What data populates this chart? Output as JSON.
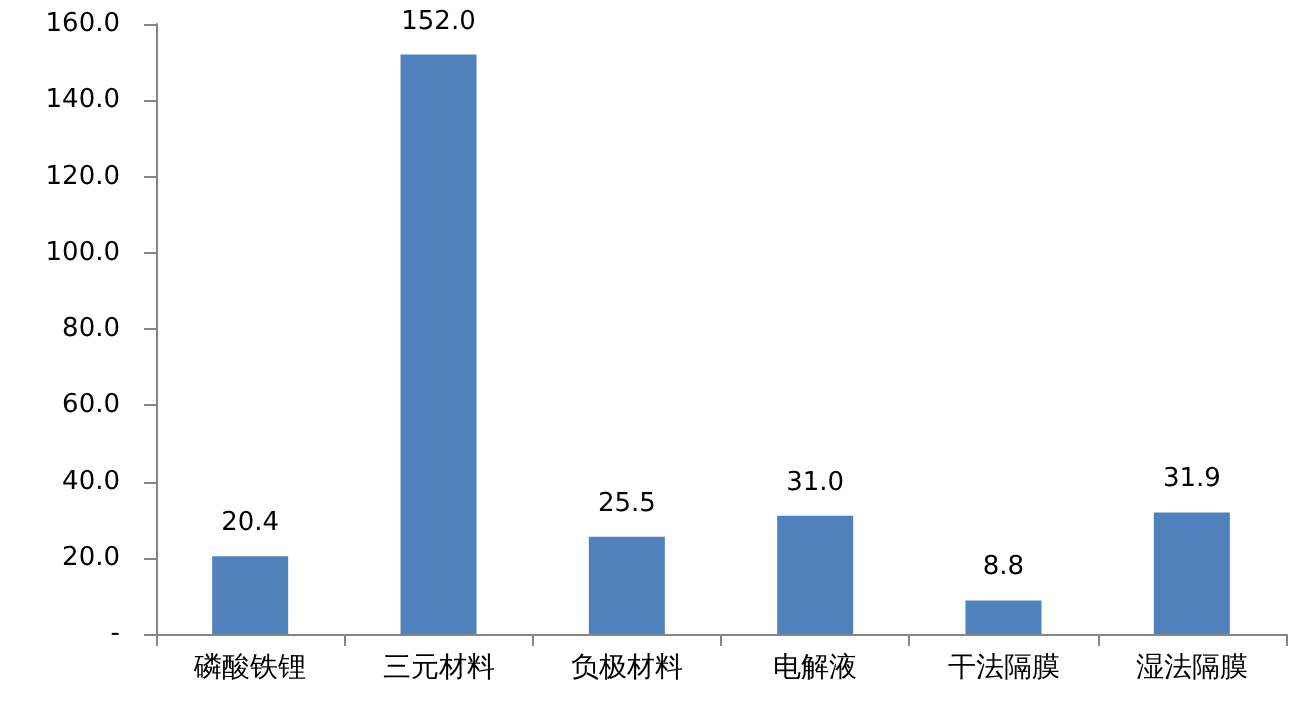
{
  "chart_data": {
    "type": "bar",
    "categories": [
      "磷酸铁锂",
      "三元材料",
      "负极材料",
      "电解液",
      "干法隔膜",
      "湿法隔膜"
    ],
    "values": [
      20.4,
      152.0,
      25.5,
      31.0,
      8.8,
      31.9
    ],
    "value_labels": [
      "20.4",
      "152.0",
      "25.5",
      "31.0",
      "8.8",
      "31.9"
    ],
    "color": "#4f81bd",
    "ylim": [
      0,
      160
    ],
    "yticks": [
      {
        "value": 0,
        "label": "-"
      },
      {
        "value": 20,
        "label": "20.0"
      },
      {
        "value": 40,
        "label": "40.0"
      },
      {
        "value": 60,
        "label": "60.0"
      },
      {
        "value": 80,
        "label": "80.0"
      },
      {
        "value": 100,
        "label": "100.0"
      },
      {
        "value": 120,
        "label": "120.0"
      },
      {
        "value": 140,
        "label": "140.0"
      },
      {
        "value": 160,
        "label": "160.0"
      }
    ],
    "grid": false
  }
}
